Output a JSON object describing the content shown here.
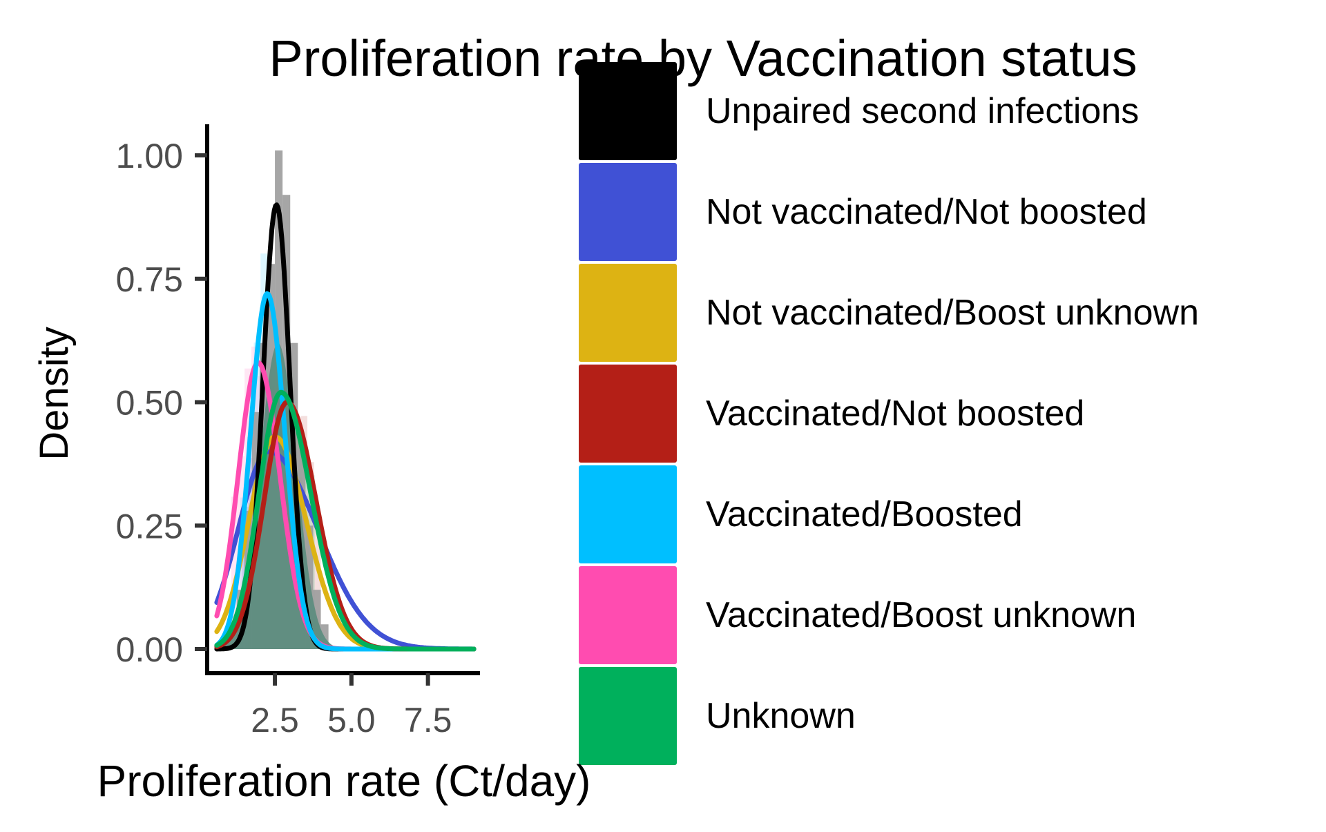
{
  "chart_data": {
    "type": "area",
    "title": "Proliferation rate by Vaccination status",
    "xlabel": "Proliferation rate (Ct/day)",
    "ylabel": "Density",
    "xlim": [
      0.4,
      9.2
    ],
    "ylim": [
      0,
      1.05
    ],
    "x_ticks": [
      2.5,
      5.0,
      7.5
    ],
    "x_tick_labels": [
      "2.5",
      "5.0",
      "7.5"
    ],
    "y_ticks": [
      0,
      0.25,
      0.5,
      0.75,
      1.0
    ],
    "y_tick_labels": [
      "0.00",
      "0.25",
      "0.50",
      "0.75",
      "1.00"
    ],
    "grid": false,
    "legend_position": "right",
    "series": [
      {
        "name": "Unpaired second infections",
        "color": "#000000",
        "mean": 2.55,
        "sd": 0.44,
        "peak": 0.9,
        "skew": 1.0
      },
      {
        "name": "Not vaccinated/Not boosted",
        "color": "#4051D5",
        "mean": 2.3,
        "sd": 1.0,
        "peak": 0.4,
        "skew": 1.6
      },
      {
        "name": "Not vaccinated/Boost unknown",
        "color": "#DDB313",
        "mean": 2.5,
        "sd": 0.85,
        "peak": 0.43,
        "skew": 1.2
      },
      {
        "name": "Vaccinated/Not boosted",
        "color": "#B41F17",
        "mean": 2.9,
        "sd": 0.75,
        "peak": 0.5,
        "skew": 1.25
      },
      {
        "name": "Vaccinated/Boosted",
        "color": "#00BFFF",
        "mean": 2.25,
        "sd": 0.55,
        "peak": 0.72,
        "skew": 1.05
      },
      {
        "name": "Vaccinated/Boost unknown",
        "color": "#FF4CB0",
        "mean": 1.95,
        "sd": 0.65,
        "peak": 0.58,
        "skew": 1.1
      },
      {
        "name": "Unknown",
        "color": "#00B05C",
        "mean": 2.7,
        "sd": 0.72,
        "peak": 0.52,
        "skew": 1.35
      }
    ],
    "histogram": {
      "color": "#9C9C9C",
      "bin_width": 0.25,
      "bin_starts": [
        1.25,
        1.5,
        1.75,
        2.0,
        2.25,
        2.5,
        2.75,
        3.0,
        3.25,
        3.5,
        3.75,
        4.0
      ],
      "values": [
        0.12,
        0.28,
        0.48,
        0.62,
        0.78,
        1.01,
        0.92,
        0.62,
        0.42,
        0.25,
        0.12,
        0.05
      ]
    },
    "filled_area": {
      "color": "#5E8D80",
      "mean": 2.6,
      "sd": 0.6,
      "peak": 0.62
    }
  }
}
